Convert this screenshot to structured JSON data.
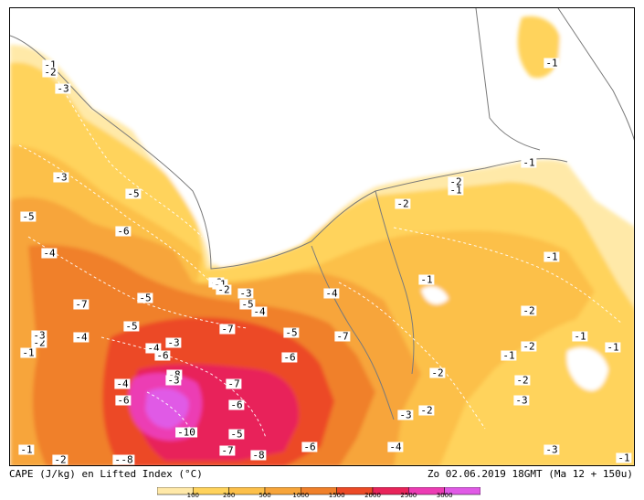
{
  "map": {
    "footer_left": "CAPE (J/kg) en Lifted Index (°C)",
    "footer_right": "Zo 02.06.2019 18GMT (Ma 12 + 150u)",
    "legend": {
      "ticks": [
        "100",
        "200",
        "500",
        "1000",
        "1500",
        "2000",
        "2500",
        "3000"
      ],
      "colors": [
        "#ffe9a8",
        "#ffd35c",
        "#fcc04a",
        "#f7a53a",
        "#f0802a",
        "#ec4a26",
        "#e8245a",
        "#ec3cb4",
        "#e05ae6"
      ]
    },
    "sea_color": "#ffffff",
    "land_border_color": "#7a7a7a",
    "lifted_index_labels": [
      "-1",
      "-2",
      "-3",
      "-3",
      "-5",
      "-5",
      "-6",
      "-4",
      "-7",
      "-5",
      "-1",
      "-2",
      "-3",
      "-4",
      "-2",
      "-3",
      "-5",
      "-4",
      "-5",
      "-1",
      "-2",
      "-4",
      "-3",
      "-4",
      "-6",
      "-8",
      "-3",
      "-4",
      "-6",
      "-7",
      "-6",
      "-7",
      "-6",
      "-5",
      "-10",
      "-7",
      "-8",
      "-6",
      "-4",
      "-3",
      "-2",
      "-4",
      "-5",
      "-7",
      "-8",
      "-1",
      "-2",
      "-1",
      "-1",
      "-1",
      "-2",
      "-1",
      "-2",
      "-2",
      "-1",
      "-2",
      "-1",
      "-1",
      "-2",
      "-3",
      "-3",
      "-1",
      "-2",
      "-1"
    ]
  }
}
